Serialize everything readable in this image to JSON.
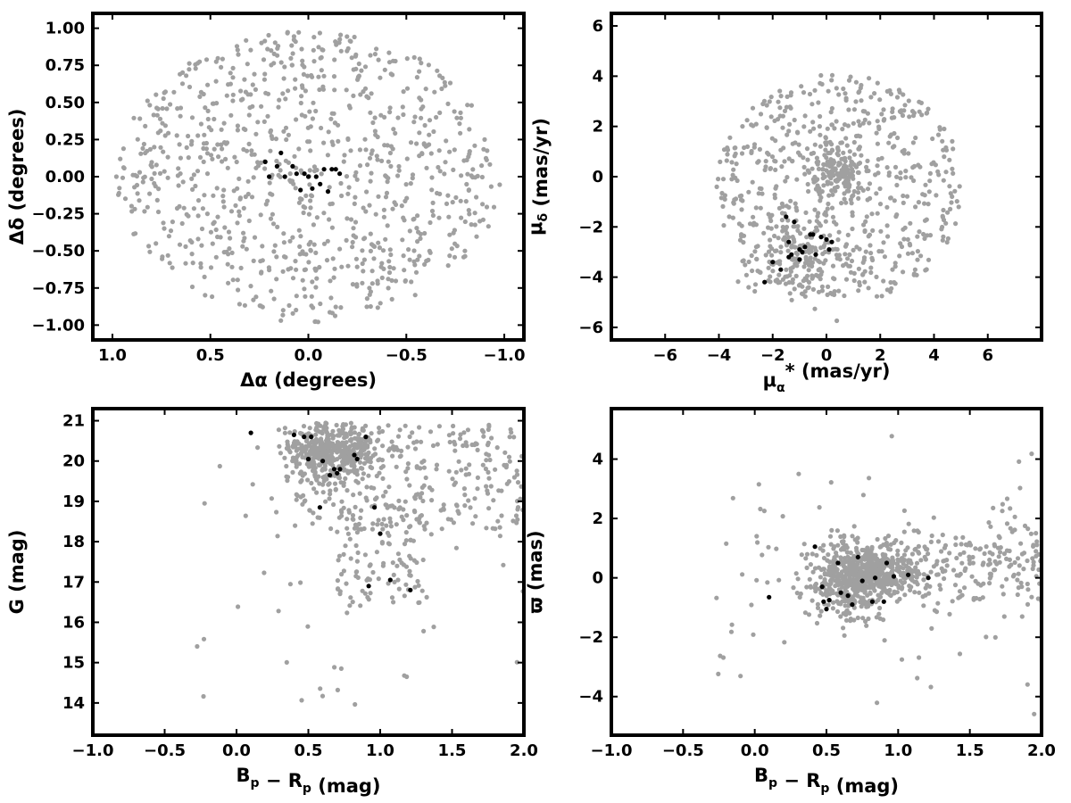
{
  "chart_data": [
    {
      "type": "scatter",
      "panel": "top-left",
      "xlabel": "Δα (degrees)",
      "ylabel": "Δδ (degrees)",
      "xlim": [
        1.1,
        -1.1
      ],
      "ylim": [
        -1.1,
        1.1
      ],
      "x_reversed": true,
      "xticks": [
        1.0,
        0.5,
        0.0,
        -0.5,
        -1.0
      ],
      "xtick_labels": [
        "1.0",
        "0.5",
        "0.0",
        "−0.5",
        "−1.0"
      ],
      "yticks": [
        -1.0,
        -0.75,
        -0.5,
        -0.25,
        0.0,
        0.25,
        0.5,
        0.75,
        1.0
      ],
      "ytick_labels": [
        "−1.00",
        "−0.75",
        "−0.50",
        "−0.25",
        "0.00",
        "0.25",
        "0.50",
        "0.75",
        "1.00"
      ],
      "grid": false,
      "field_distribution": {
        "shape": "disk",
        "center": [
          0.0,
          0.0
        ],
        "radius": 0.98,
        "count": 900
      },
      "series": [
        {
          "color": "#a0a0a0",
          "role": "field",
          "x": [],
          "y": []
        },
        {
          "color": "#000000",
          "role": "members",
          "x": [
            0.22,
            0.16,
            0.14,
            0.12,
            0.06,
            0.04,
            0.02,
            0.0,
            -0.02,
            -0.06,
            -0.08,
            -0.1,
            -0.12,
            -0.14,
            -0.16,
            0.08,
            -0.04,
            0.2
          ],
          "y": [
            0.1,
            0.07,
            0.16,
            0.0,
            0.02,
            -0.09,
            0.02,
            0.0,
            -0.08,
            -0.05,
            0.05,
            -0.1,
            0.05,
            0.05,
            0.02,
            0.07,
            0.0,
            0.0
          ]
        }
      ]
    },
    {
      "type": "scatter",
      "panel": "top-right",
      "xlabel": "μ_α* (mas/yr)",
      "ylabel": "μ_δ (mas/yr)",
      "xlim": [
        -8,
        8
      ],
      "ylim": [
        -6.5,
        6.5
      ],
      "xticks": [
        -6,
        -4,
        -2,
        0,
        2,
        4,
        6
      ],
      "xtick_labels": [
        "−6",
        "−4",
        "−2",
        "0",
        "2",
        "4",
        "6"
      ],
      "yticks": [
        -6,
        -4,
        -2,
        0,
        2,
        4,
        6
      ],
      "ytick_labels": [
        "−6",
        "−4",
        "−2",
        "0",
        "2",
        "4",
        "6"
      ],
      "grid": false,
      "field_distribution": {
        "shape": "ellipse",
        "center": [
          0.5,
          -0.5
        ],
        "radii": [
          4.6,
          4.6
        ],
        "ylim_cut": [
          -4.8,
          4.8
        ],
        "count": 900
      },
      "series": [
        {
          "color": "#a0a0a0",
          "role": "field",
          "x": [],
          "y": []
        },
        {
          "color": "#000000",
          "role": "members",
          "x": [
            -2.3,
            -2.0,
            -1.7,
            -1.5,
            -1.4,
            -1.3,
            -1.2,
            -1.0,
            -0.9,
            -0.8,
            -0.6,
            -0.5,
            -0.4,
            -0.2,
            0.0,
            0.1,
            0.2,
            -1.0,
            -1.4
          ],
          "y": [
            -4.2,
            -3.4,
            -3.7,
            -1.6,
            -2.6,
            -3.1,
            -1.8,
            -2.9,
            -3.0,
            -2.8,
            -2.3,
            -2.3,
            -3.1,
            -2.4,
            -2.5,
            -2.9,
            -2.6,
            -3.3,
            -3.2
          ]
        }
      ]
    },
    {
      "type": "scatter",
      "panel": "bottom-left",
      "xlabel": "B_p − R_p (mag)",
      "ylabel": "G (mag)",
      "xlim": [
        -1.0,
        2.0
      ],
      "ylim": [
        13.2,
        21.3
      ],
      "xticks": [
        -1.0,
        -0.5,
        0.0,
        0.5,
        1.0,
        1.5,
        2.0
      ],
      "xtick_labels": [
        "−1.0",
        "−0.5",
        "0.0",
        "0.5",
        "1.0",
        "1.5",
        "2.0"
      ],
      "yticks": [
        14,
        15,
        16,
        17,
        18,
        19,
        20,
        21
      ],
      "ytick_labels": [
        "14",
        "15",
        "16",
        "17",
        "18",
        "19",
        "20",
        "21"
      ],
      "grid": false,
      "field_distribution": {
        "shape": "cmd",
        "count": 900
      },
      "series": [
        {
          "color": "#a0a0a0",
          "role": "field",
          "x": [],
          "y": []
        },
        {
          "color": "#000000",
          "role": "members",
          "x": [
            0.1,
            0.4,
            0.47,
            0.5,
            0.52,
            0.58,
            0.6,
            0.65,
            0.68,
            0.72,
            0.82,
            0.84,
            0.9,
            0.92,
            0.96,
            1.0,
            1.07,
            1.21,
            0.7
          ],
          "y": [
            20.7,
            20.65,
            20.6,
            20.05,
            20.6,
            18.85,
            20.0,
            19.65,
            19.8,
            19.8,
            20.15,
            20.05,
            20.6,
            16.9,
            18.85,
            18.2,
            17.05,
            16.8,
            19.7
          ]
        }
      ]
    },
    {
      "type": "scatter",
      "panel": "bottom-right",
      "xlabel": "B_p − R_p (mag)",
      "ylabel": "ϖ (mas)",
      "xlim": [
        -1.0,
        2.0
      ],
      "ylim": [
        -5.3,
        5.7
      ],
      "xticks": [
        -1.0,
        -0.5,
        0.0,
        0.5,
        1.0,
        1.5,
        2.0
      ],
      "xtick_labels": [
        "−1.0",
        "−0.5",
        "0.0",
        "0.5",
        "1.0",
        "1.5",
        "2.0"
      ],
      "yticks": [
        -4,
        -2,
        0,
        2,
        4
      ],
      "ytick_labels": [
        "−4",
        "−2",
        "0",
        "2",
        "4"
      ],
      "grid": false,
      "field_distribution": {
        "shape": "parallax",
        "count": 1000
      },
      "series": [
        {
          "color": "#a0a0a0",
          "role": "field",
          "x": [],
          "y": []
        },
        {
          "color": "#000000",
          "role": "members",
          "x": [
            0.1,
            0.42,
            0.47,
            0.5,
            0.52,
            0.58,
            0.6,
            0.65,
            0.68,
            0.72,
            0.75,
            0.82,
            0.84,
            0.9,
            0.92,
            0.97,
            1.07,
            1.21,
            0.48
          ],
          "y": [
            -0.65,
            1.05,
            -0.3,
            -1.05,
            -0.75,
            0.5,
            -0.5,
            -0.6,
            -0.9,
            0.7,
            -0.1,
            -0.8,
            0.0,
            -0.8,
            0.5,
            0.05,
            0.1,
            0.0,
            -0.8
          ]
        }
      ]
    }
  ]
}
